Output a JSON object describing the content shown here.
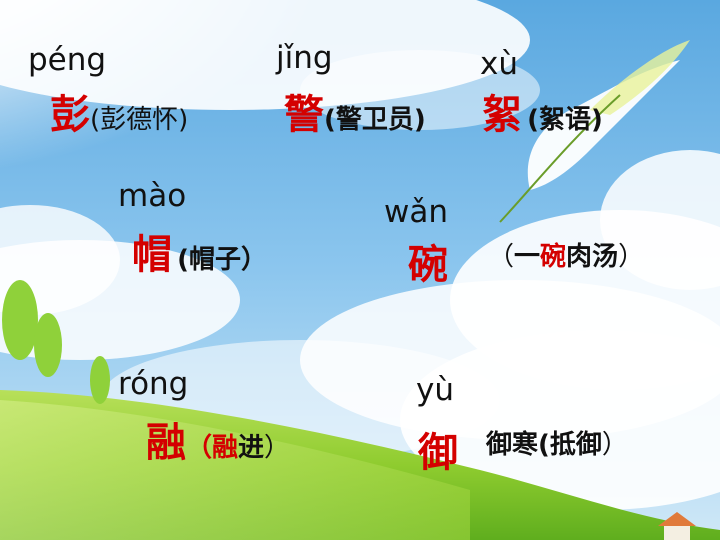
{
  "entries": [
    {
      "pinyin": "péng",
      "char": "彭",
      "word_open": "(",
      "word_pre": "",
      "word_hl": "",
      "word_post": "彭德怀",
      "word_close": ")"
    },
    {
      "pinyin": "jǐng",
      "char": "警",
      "word_open": "(",
      "word_pre": "",
      "word_hl": "",
      "word_post": "警卫员",
      "word_close": ")"
    },
    {
      "pinyin": "xù",
      "char": "絮",
      "word_open": "(",
      "word_pre": "",
      "word_hl": "",
      "word_post": "絮语",
      "word_close": ")"
    },
    {
      "pinyin": "mào",
      "char": "帽",
      "word_open": "(",
      "word_pre": "",
      "word_hl": "",
      "word_post": "帽子",
      "word_close": "）"
    },
    {
      "pinyin": "wǎn",
      "char": "碗",
      "word_open": "（",
      "word_pre": "一",
      "word_hl": "碗",
      "word_post": "肉汤",
      "word_close": "）"
    },
    {
      "pinyin": "róng",
      "char": "融",
      "word_open": "（",
      "word_pre": "",
      "word_hl": "融",
      "word_post": "进",
      "word_close": "）"
    },
    {
      "pinyin": "yù",
      "char": "御",
      "word_open": "",
      "word_pre": "御寒(抵御",
      "word_hl": "",
      "word_post": "",
      "word_close": "）"
    }
  ]
}
